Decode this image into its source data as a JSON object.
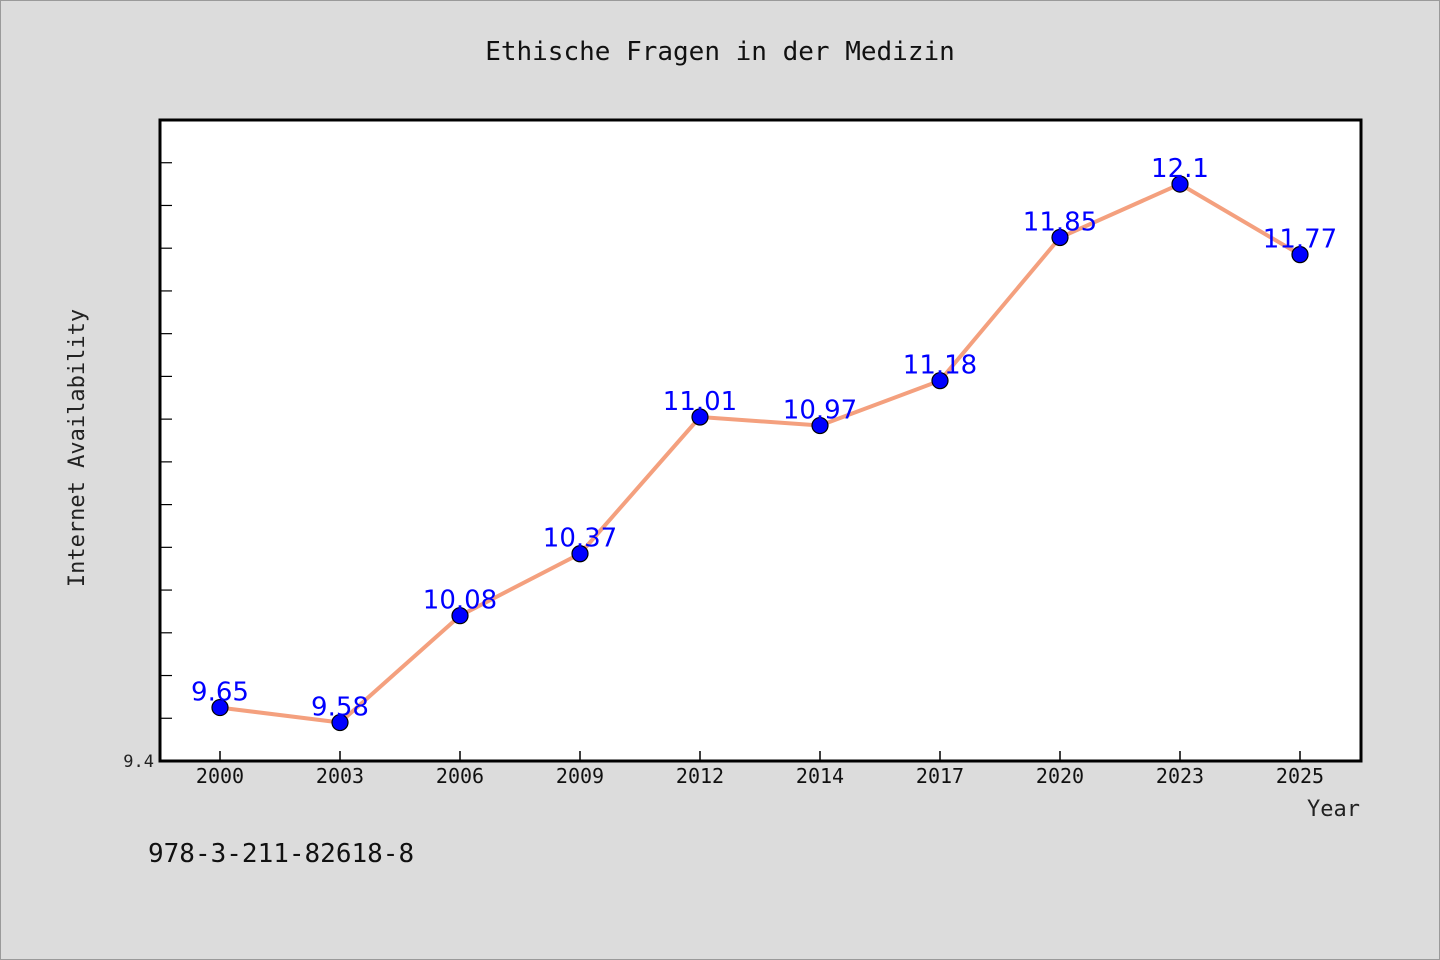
{
  "chart_data": {
    "type": "line",
    "title": "Ethische Fragen in der Medizin",
    "xlabel": "Year",
    "ylabel": "Internet Availability",
    "categories": [
      "2000",
      "2003",
      "2006",
      "2009",
      "2012",
      "2014",
      "2017",
      "2020",
      "2023",
      "2025"
    ],
    "series": [
      {
        "values": [
          9.65,
          9.58,
          10.08,
          10.37,
          11.01,
          10.97,
          11.18,
          11.85,
          12.1,
          11.77
        ],
        "data_labels": [
          "9.65",
          "9.58",
          "10.08",
          "10.37",
          "11.01",
          "10.97",
          "11.18",
          "11.85",
          "12.1",
          "11.77"
        ]
      }
    ],
    "y_tick_labels": [
      "9.4"
    ],
    "ylim": [
      9.4,
      12.4
    ],
    "grid": false,
    "legend": "none",
    "colors": {
      "line": "#f4a07e",
      "marker": "#0000ff",
      "data_label": "#0000ff",
      "plot_background": "#ffffff",
      "figure_background": "#dcdcdc"
    }
  },
  "footer": {
    "isbn": "978-3-211-82618-8"
  }
}
